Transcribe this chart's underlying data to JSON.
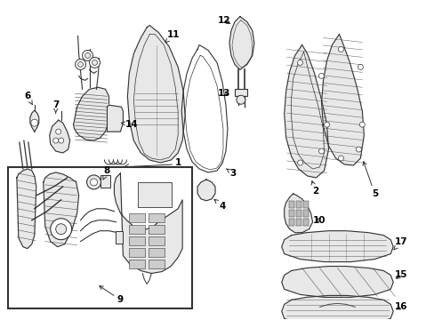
{
  "background_color": "#ffffff",
  "line_color": "#333333",
  "text_color": "#000000",
  "figsize": [
    4.89,
    3.6
  ],
  "dpi": 100
}
